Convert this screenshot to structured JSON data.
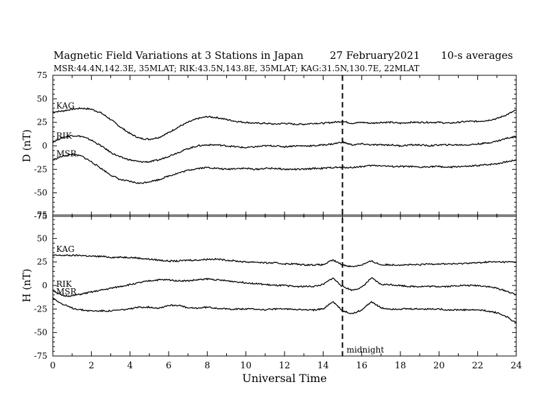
{
  "title": "Magnetic Field Variations at 3 Stations in Japan",
  "date": "27 February2021",
  "averaging": "10-s averages",
  "stations_line": "MSR:44.4N,142.3E, 35MLAT;  RIK:43.5N,143.8E, 35MLAT;  KAG:31.5N,130.7E, 22MLAT",
  "chart_data": [
    {
      "type": "line",
      "ylabel": "D (nT)",
      "ylim": [
        -75,
        75
      ],
      "yticks": [
        75,
        50,
        25,
        0,
        -25,
        -50,
        -75
      ],
      "xlim": [
        0,
        24
      ],
      "grid": false,
      "series": [
        {
          "name": "KAG",
          "x": [
            0,
            0.5,
            1,
            1.5,
            2,
            2.5,
            3,
            3.5,
            4,
            4.5,
            5,
            5.5,
            6,
            6.5,
            7,
            7.5,
            8,
            8.5,
            9,
            9.5,
            10,
            10.5,
            11,
            11.5,
            12,
            12.5,
            13,
            13.5,
            14,
            14.5,
            15,
            15.5,
            16,
            16.5,
            17,
            17.5,
            18,
            18.5,
            19,
            19.5,
            20,
            20.5,
            21,
            21.5,
            22,
            22.5,
            23,
            23.5,
            24
          ],
          "values": [
            36,
            37,
            39,
            40,
            39,
            35,
            28,
            20,
            13,
            8,
            7,
            9,
            14,
            20,
            25,
            29,
            31,
            30,
            28,
            26,
            25,
            24,
            24,
            23,
            24,
            23,
            23,
            24,
            24,
            25,
            26,
            24,
            25,
            24,
            25,
            25,
            24,
            25,
            25,
            25,
            25,
            24,
            25,
            26,
            26,
            27,
            29,
            33,
            38
          ]
        },
        {
          "name": "RIK",
          "x": [
            0,
            0.5,
            1,
            1.5,
            2,
            2.5,
            3,
            3.5,
            4,
            4.5,
            5,
            5.5,
            6,
            6.5,
            7,
            7.5,
            8,
            8.5,
            9,
            9.5,
            10,
            10.5,
            11,
            11.5,
            12,
            12.5,
            13,
            13.5,
            14,
            14.5,
            15,
            15.5,
            16,
            16.5,
            17,
            17.5,
            18,
            18.5,
            19,
            19.5,
            20,
            20.5,
            21,
            21.5,
            22,
            22.5,
            23,
            23.5,
            24
          ],
          "values": [
            4,
            9,
            11,
            10,
            6,
            0,
            -7,
            -12,
            -15,
            -17,
            -17,
            -15,
            -11,
            -7,
            -3,
            0,
            1,
            1,
            0,
            -1,
            -2,
            -1,
            0,
            0,
            -1,
            0,
            0,
            0,
            1,
            2,
            4,
            1,
            2,
            1,
            1,
            1,
            0,
            1,
            1,
            0,
            1,
            1,
            1,
            1,
            2,
            3,
            5,
            8,
            10
          ]
        },
        {
          "name": "MSR",
          "x": [
            0,
            0.5,
            1,
            1.5,
            2,
            2.5,
            3,
            3.5,
            4,
            4.5,
            5,
            5.5,
            6,
            6.5,
            7,
            7.5,
            8,
            8.5,
            9,
            9.5,
            10,
            10.5,
            11,
            11.5,
            12,
            12.5,
            13,
            13.5,
            14,
            14.5,
            15,
            15.5,
            16,
            16.5,
            17,
            17.5,
            18,
            18.5,
            19,
            19.5,
            20,
            20.5,
            21,
            21.5,
            22,
            22.5,
            23,
            23.5,
            24
          ],
          "values": [
            -15,
            -11,
            -9,
            -11,
            -17,
            -24,
            -31,
            -36,
            -38,
            -40,
            -38,
            -36,
            -32,
            -29,
            -26,
            -24,
            -23,
            -24,
            -25,
            -24,
            -24,
            -25,
            -24,
            -24,
            -25,
            -25,
            -25,
            -24,
            -24,
            -23,
            -23,
            -23,
            -22,
            -21,
            -21,
            -22,
            -22,
            -22,
            -23,
            -22,
            -22,
            -23,
            -22,
            -22,
            -21,
            -20,
            -19,
            -17,
            -15
          ]
        }
      ]
    },
    {
      "type": "line",
      "ylabel": "H (nT)",
      "ylim": [
        -75,
        75
      ],
      "yticks": [
        75,
        50,
        25,
        0,
        -25,
        -50,
        -75
      ],
      "xlim": [
        0,
        24
      ],
      "xticks": [
        0,
        2,
        4,
        6,
        8,
        10,
        12,
        14,
        16,
        18,
        20,
        22,
        24
      ],
      "xlabel": "Universal Time",
      "grid": false,
      "annotation": {
        "x": 15,
        "label": "midnight",
        "style": "dashed vertical line"
      },
      "series": [
        {
          "name": "KAG",
          "x": [
            0,
            0.5,
            1,
            1.5,
            2,
            2.5,
            3,
            3.5,
            4,
            4.5,
            5,
            5.5,
            6,
            6.5,
            7,
            7.5,
            8,
            8.5,
            9,
            9.5,
            10,
            10.5,
            11,
            11.5,
            12,
            12.5,
            13,
            13.5,
            14,
            14.5,
            15,
            15.5,
            16,
            16.5,
            17,
            17.5,
            18,
            18.5,
            19,
            19.5,
            20,
            20.5,
            21,
            21.5,
            22,
            22.5,
            23,
            23.5,
            24
          ],
          "values": [
            32,
            32,
            32,
            32,
            31,
            31,
            30,
            30,
            30,
            29,
            28,
            27,
            26,
            26,
            27,
            27,
            28,
            28,
            27,
            26,
            25,
            25,
            24,
            24,
            23,
            23,
            22,
            22,
            22,
            27,
            22,
            20,
            22,
            26,
            22,
            22,
            22,
            22,
            22,
            23,
            23,
            23,
            23,
            24,
            24,
            25,
            25,
            25,
            25
          ]
        },
        {
          "name": "RIK",
          "x": [
            0,
            0.5,
            1,
            1.5,
            2,
            2.5,
            3,
            3.5,
            4,
            4.5,
            5,
            5.5,
            6,
            6.5,
            7,
            7.5,
            8,
            8.5,
            9,
            9.5,
            10,
            10.5,
            11,
            11.5,
            12,
            12.5,
            13,
            13.5,
            14,
            14.5,
            15,
            15.5,
            16,
            16.5,
            17,
            17.5,
            18,
            18.5,
            19,
            19.5,
            20,
            20.5,
            21,
            21.5,
            22,
            22.5,
            23,
            23.5,
            24
          ],
          "values": [
            -5,
            -11,
            -11,
            -9,
            -7,
            -5,
            -3,
            -1,
            1,
            3,
            5,
            6,
            6,
            5,
            5,
            6,
            7,
            6,
            5,
            4,
            3,
            2,
            1,
            0,
            0,
            -1,
            -1,
            -1,
            1,
            8,
            -1,
            -5,
            -2,
            8,
            1,
            1,
            0,
            -1,
            -1,
            -1,
            -1,
            -1,
            0,
            0,
            0,
            -1,
            -3,
            -6,
            -10
          ]
        },
        {
          "name": "MSR",
          "x": [
            0,
            0.5,
            1,
            1.5,
            2,
            2.5,
            3,
            3.5,
            4,
            4.5,
            5,
            5.5,
            6,
            6.5,
            7,
            7.5,
            8,
            8.5,
            9,
            9.5,
            10,
            10.5,
            11,
            11.5,
            12,
            12.5,
            13,
            13.5,
            14,
            14.5,
            15,
            15.5,
            16,
            16.5,
            17,
            17.5,
            18,
            18.5,
            19,
            19.5,
            20,
            20.5,
            21,
            21.5,
            22,
            22.5,
            23,
            23.5,
            24
          ],
          "values": [
            -13,
            -20,
            -24,
            -26,
            -27,
            -27,
            -27,
            -26,
            -25,
            -23,
            -23,
            -24,
            -21,
            -21,
            -24,
            -24,
            -23,
            -24,
            -25,
            -25,
            -25,
            -25,
            -26,
            -25,
            -25,
            -25,
            -26,
            -26,
            -25,
            -17,
            -27,
            -30,
            -26,
            -17,
            -24,
            -25,
            -25,
            -25,
            -25,
            -25,
            -25,
            -26,
            -26,
            -26,
            -26,
            -27,
            -29,
            -33,
            -40
          ]
        }
      ]
    }
  ]
}
